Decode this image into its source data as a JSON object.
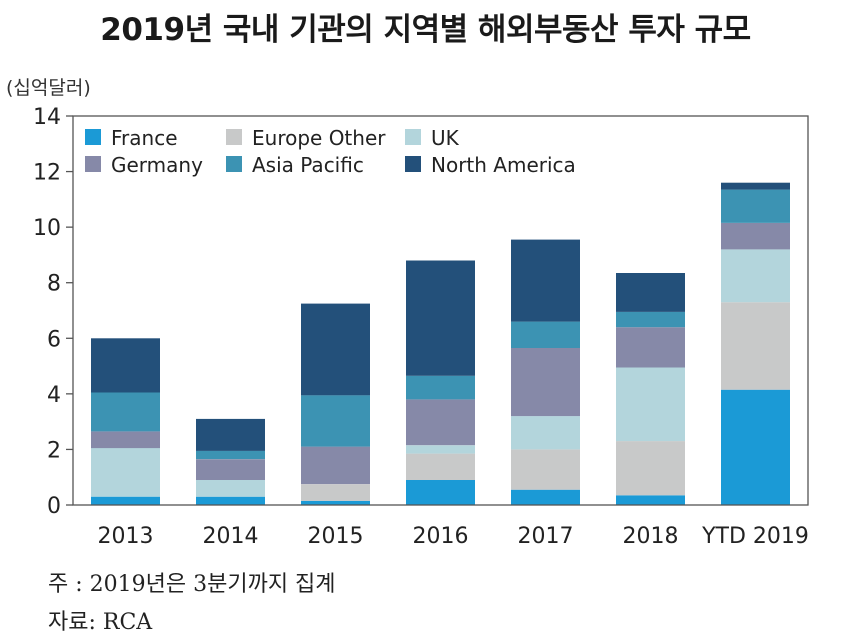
{
  "chart_data": {
    "type": "bar",
    "stacked": true,
    "title": "2019년 국내 기관의 지역별 해외부동산 투자 규모",
    "ylabel": "(십억달러)",
    "ylim": [
      0,
      14
    ],
    "yticks": [
      0,
      2,
      4,
      6,
      8,
      10,
      12,
      14
    ],
    "grid": false,
    "legend_position": "top-left",
    "categories": [
      "2013",
      "2014",
      "2015",
      "2016",
      "2017",
      "2018",
      "YTD 2019"
    ],
    "series": [
      {
        "name": "France",
        "color": "#1b9ad6",
        "values": [
          0.3,
          0.3,
          0.15,
          0.9,
          0.55,
          0.35,
          4.15
        ]
      },
      {
        "name": "Europe Other",
        "color": "#c8c9c9",
        "values": [
          0.0,
          0.0,
          0.6,
          0.95,
          1.45,
          1.95,
          3.15
        ]
      },
      {
        "name": "UK",
        "color": "#b3d5dc",
        "values": [
          1.75,
          0.6,
          0.0,
          0.3,
          1.2,
          2.65,
          1.9
        ]
      },
      {
        "name": "Germany",
        "color": "#8689a8",
        "values": [
          0.6,
          0.75,
          1.35,
          1.65,
          2.45,
          1.45,
          0.95
        ]
      },
      {
        "name": "Asia Pacific",
        "color": "#3c93b3",
        "values": [
          1.4,
          0.3,
          1.85,
          0.85,
          0.95,
          0.55,
          1.2
        ]
      },
      {
        "name": "North America",
        "color": "#23507a",
        "values": [
          1.95,
          1.15,
          3.3,
          4.15,
          2.95,
          1.4,
          0.25
        ]
      }
    ]
  },
  "notes": {
    "note": "주   : 2019년은 3분기까지 집계",
    "source": "자료: RCA"
  }
}
